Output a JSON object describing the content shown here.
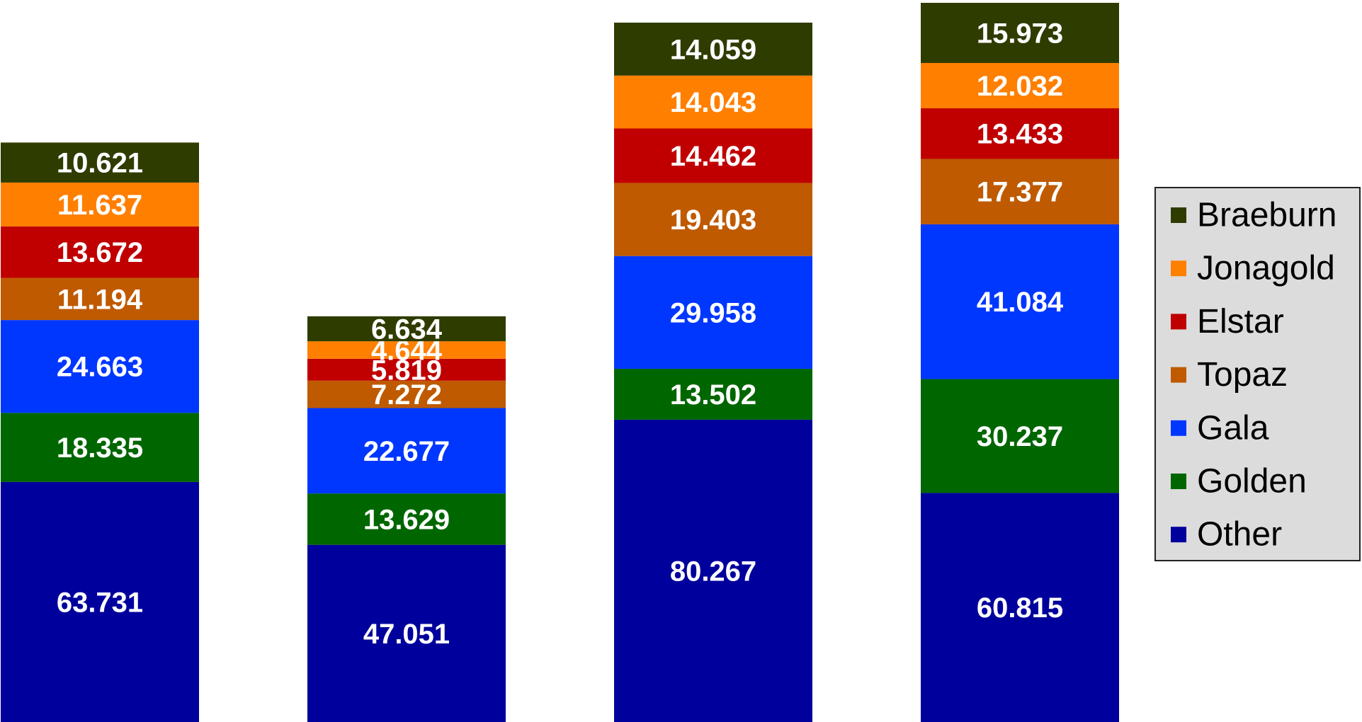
{
  "chart_data": {
    "type": "stacked_bar",
    "categories": [
      null,
      null,
      null,
      null
    ],
    "series": [
      {
        "name": "Other",
        "color": "#00009c",
        "values": [
          63.731,
          47.051,
          80.267,
          60.815
        ]
      },
      {
        "name": "Golden",
        "color": "#006600",
        "values": [
          18.335,
          13.629,
          13.502,
          30.237
        ]
      },
      {
        "name": "Gala",
        "color": "#0037ff",
        "values": [
          24.663,
          22.677,
          29.958,
          41.084
        ]
      },
      {
        "name": "Topaz",
        "color": "#bf5a00",
        "values": [
          11.194,
          7.272,
          19.403,
          17.377
        ]
      },
      {
        "name": "Elstar",
        "color": "#c00000",
        "values": [
          13.672,
          5.819,
          14.462,
          13.433
        ]
      },
      {
        "name": "Jonagold",
        "color": "#ff7f00",
        "values": [
          11.637,
          4.644,
          14.043,
          12.032
        ]
      },
      {
        "name": "Braeburn",
        "color": "#2f3c00",
        "values": [
          10.621,
          6.634,
          14.059,
          15.973
        ]
      }
    ],
    "legend": "right"
  }
}
